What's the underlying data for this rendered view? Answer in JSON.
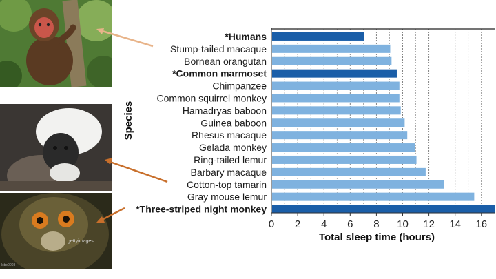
{
  "colors": {
    "highlight_bar": "#1a5ea8",
    "regular_bar": "#7fb2df",
    "grid": "#777777",
    "arrow": "#c86f2b",
    "arrow_light": "#e8b48a"
  },
  "photos": [
    {
      "name": "stump-tailed-macaque-photo"
    },
    {
      "name": "cotton-top-tamarin-photo"
    },
    {
      "name": "three-striped-night-monkey-photo",
      "watermark": "gettyimages",
      "credit": "lcbe0003"
    }
  ],
  "chart_data": {
    "type": "bar",
    "orientation": "horizontal",
    "categories": [
      "*Humans",
      "Stump-tailed macaque",
      "Bornean orangutan",
      "*Common marmoset",
      "Chimpanzee",
      "Common squirrel monkey",
      "Hamadryas baboon",
      "Guinea baboon",
      "Rhesus macaque",
      "Gelada monkey",
      "Ring-tailed lemur",
      "Barbary macaque",
      "Cotton-top tamarin",
      "Gray mouse lemur",
      "*Three-striped night monkey"
    ],
    "values": [
      7.0,
      9.0,
      9.1,
      9.5,
      9.7,
      9.7,
      9.8,
      10.1,
      10.3,
      10.9,
      11.0,
      11.7,
      13.1,
      15.4,
      17.0
    ],
    "highlighted": [
      true,
      false,
      false,
      true,
      false,
      false,
      false,
      false,
      false,
      false,
      false,
      false,
      false,
      false,
      true
    ],
    "xlabel": "Total sleep time (hours)",
    "ylabel": "Species",
    "xlim": [
      0,
      17
    ],
    "xticks": [
      "0",
      "2",
      "4",
      "6",
      "8",
      "10",
      "12",
      "14",
      "16"
    ],
    "grid": "vertical dashed"
  }
}
